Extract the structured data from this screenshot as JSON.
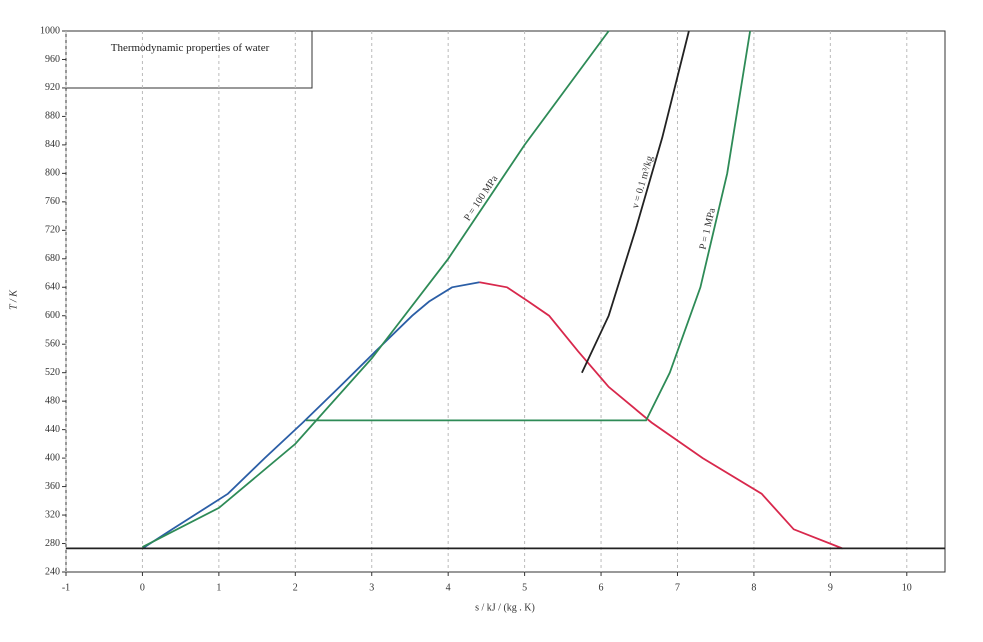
{
  "chart_data": {
    "type": "line",
    "title": "Thermodynamic properties of water",
    "x_label": "s / kJ / (kg . K)",
    "y_label": "T / K",
    "xlim": [
      -1,
      10.5
    ],
    "ylim": [
      240,
      1000
    ],
    "xticks": [
      -1,
      0,
      1,
      2,
      3,
      4,
      5,
      6,
      7,
      8,
      9,
      10
    ],
    "yticks": [
      240,
      280,
      320,
      360,
      400,
      440,
      480,
      520,
      560,
      600,
      640,
      680,
      720,
      760,
      800,
      840,
      880,
      920,
      960,
      1000
    ],
    "grid": true,
    "series": [
      {
        "color": "#2b5ea6",
        "x": [
          0,
          0.39,
          1.12,
          1.6,
          2.1,
          2.58,
          3.05,
          3.53,
          3.75,
          4.05,
          4.41
        ],
        "values": [
          273,
          300,
          350,
          400,
          450,
          500,
          550,
          600,
          620,
          640,
          647
        ]
      },
      {
        "color": "#d8284c",
        "x": [
          4.41,
          4.77,
          5.05,
          5.32,
          5.7,
          6.1,
          6.66,
          7.33,
          8.1,
          8.52,
          9.16
        ],
        "values": [
          647,
          640,
          620,
          600,
          550,
          500,
          450,
          400,
          350,
          300,
          273
        ]
      },
      {
        "name": "P = 100 MPa",
        "color": "#2e8b57",
        "x": [
          0,
          1,
          2,
          3,
          4,
          5,
          6.1
        ],
        "values": [
          275,
          330,
          420,
          540,
          680,
          840,
          1000
        ]
      },
      {
        "name": "P = 1 MPa",
        "color": "#2e8b57",
        "x": [
          2.14,
          6.59,
          6.9,
          7.3,
          7.65,
          7.95
        ],
        "values": [
          453,
          453,
          520,
          640,
          800,
          1000
        ]
      },
      {
        "name": "v = 0.1 m³/kg",
        "color": "#222222",
        "x": [
          5.75,
          6.1,
          6.45,
          6.8,
          7.15
        ],
        "values": [
          520,
          600,
          720,
          850,
          1000
        ]
      },
      {
        "color": "#222222",
        "x": [
          -1,
          10.5
        ],
        "values": [
          273.16,
          273.16
        ]
      }
    ]
  }
}
